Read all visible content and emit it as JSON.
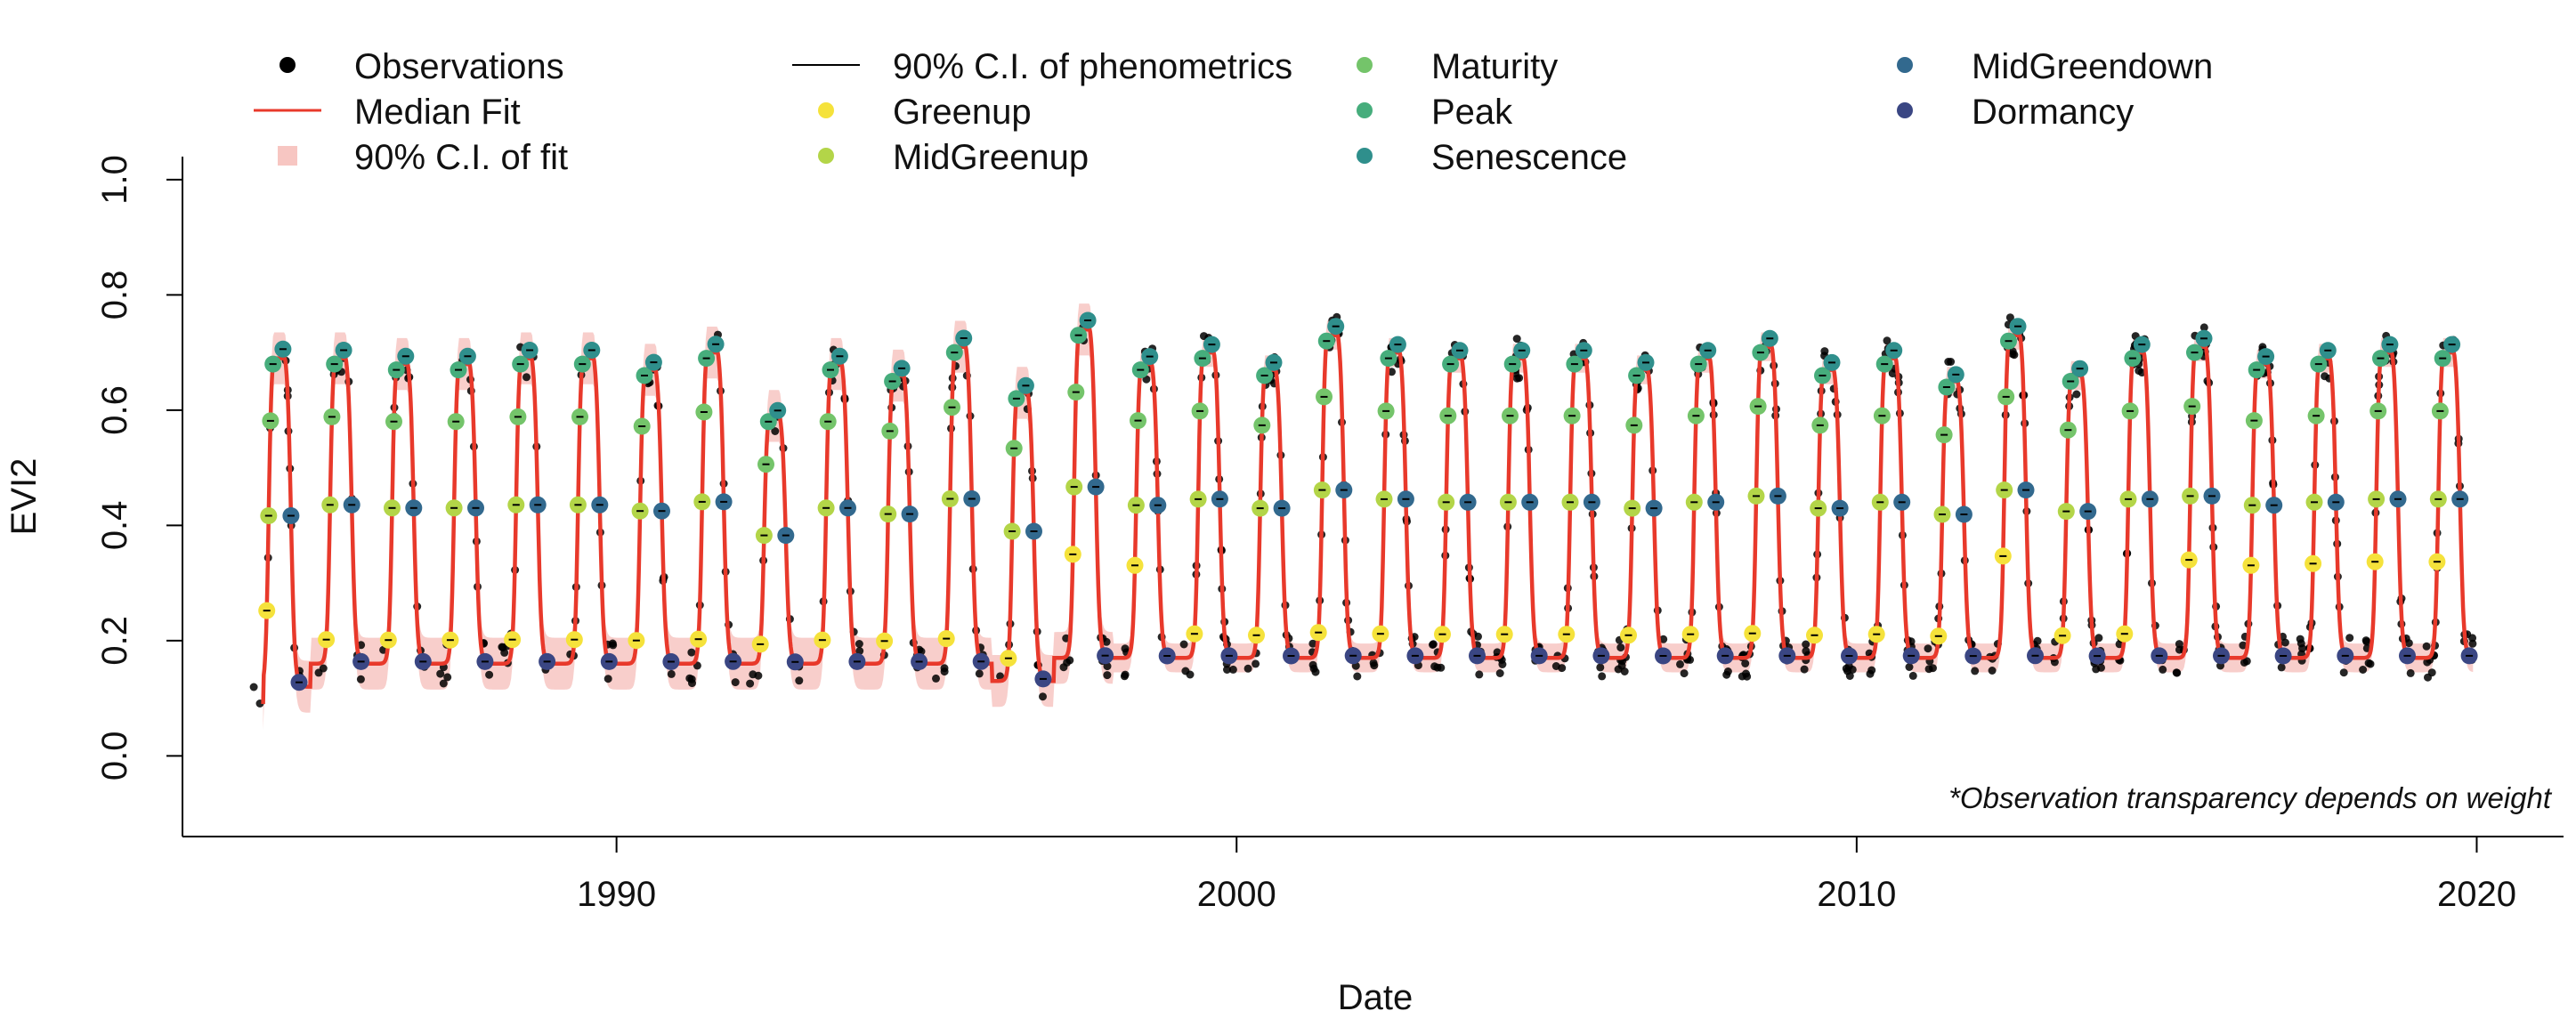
{
  "chart_data": {
    "type": "line",
    "xlabel": "Date",
    "ylabel": "EVI2",
    "xlim": [
      1983.0,
      2021.4
    ],
    "ylim": [
      -0.14,
      1.04
    ],
    "x_ticks": [
      1990,
      2000,
      2010,
      2020
    ],
    "y_ticks": [
      0.0,
      0.2,
      0.4,
      0.6,
      0.8,
      1.0
    ],
    "y_tick_labels": [
      "0.0",
      "0.2",
      "0.4",
      "0.6",
      "0.8",
      "1.0"
    ],
    "note": "*Observation transparency depends on weight",
    "legend": {
      "placement": "top",
      "entries": [
        {
          "label": "Observations",
          "kind": "point",
          "color": "#000000"
        },
        {
          "label": "Median Fit",
          "kind": "line",
          "color": "#e8392b"
        },
        {
          "label": "90% C.I. of fit",
          "kind": "band",
          "color": "#f7c6c2"
        },
        {
          "label": "90% C.I. of phenometrics",
          "kind": "line",
          "color": "#000000"
        },
        {
          "label": "Greenup",
          "kind": "point",
          "color": "#f5e23b"
        },
        {
          "label": "MidGreenup",
          "kind": "point",
          "color": "#b3d548"
        },
        {
          "label": "Maturity",
          "kind": "point",
          "color": "#74c46a"
        },
        {
          "label": "Peak",
          "kind": "point",
          "color": "#46ad7c"
        },
        {
          "label": "Senescence",
          "kind": "point",
          "color": "#2f8f8c"
        },
        {
          "label": "MidGreendown",
          "kind": "point",
          "color": "#32698e"
        },
        {
          "label": "Dormancy",
          "kind": "point",
          "color": "#3a4683"
        }
      ]
    },
    "seasons": {
      "years": [
        1984,
        1985,
        1986,
        1987,
        1988,
        1989,
        1990,
        1991,
        1992,
        1993,
        1994,
        1995,
        1996,
        1997,
        1998,
        1999,
        2000,
        2001,
        2002,
        2003,
        2004,
        2005,
        2006,
        2007,
        2008,
        2009,
        2010,
        2011,
        2012,
        2013,
        2014,
        2015,
        2016,
        2017,
        2018,
        2019
      ],
      "greenup": [
        1984.36,
        1985.32,
        1986.32,
        1987.32,
        1988.32,
        1989.32,
        1990.32,
        1991.32,
        1992.32,
        1993.32,
        1994.32,
        1995.32,
        1996.32,
        1997.36,
        1998.36,
        1999.32,
        2000.32,
        2001.32,
        2002.32,
        2003.32,
        2004.32,
        2005.32,
        2006.32,
        2007.32,
        2008.32,
        2009.32,
        2010.32,
        2011.32,
        2012.36,
        2013.32,
        2014.32,
        2015.36,
        2016.36,
        2017.36,
        2018.36,
        2019.36
      ],
      "midgreenup": [
        1984.39,
        1985.38,
        1986.38,
        1987.38,
        1988.38,
        1989.38,
        1990.38,
        1991.38,
        1992.38,
        1993.38,
        1994.38,
        1995.38,
        1996.38,
        1997.38,
        1998.38,
        1999.38,
        2000.38,
        2001.38,
        2002.38,
        2003.38,
        2004.38,
        2005.38,
        2006.38,
        2007.38,
        2008.38,
        2009.38,
        2010.38,
        2011.38,
        2012.38,
        2013.38,
        2014.38,
        2015.38,
        2016.38,
        2017.38,
        2018.38,
        2019.38
      ],
      "maturity": [
        1984.42,
        1985.41,
        1986.41,
        1987.41,
        1988.41,
        1989.41,
        1990.41,
        1991.41,
        1992.41,
        1993.41,
        1994.41,
        1995.41,
        1996.41,
        1997.41,
        1998.41,
        1999.41,
        2000.41,
        2001.41,
        2002.41,
        2003.41,
        2004.41,
        2005.41,
        2006.41,
        2007.41,
        2008.41,
        2009.41,
        2010.41,
        2011.41,
        2012.41,
        2013.41,
        2014.41,
        2015.41,
        2016.41,
        2017.41,
        2018.41,
        2019.41
      ],
      "peak": [
        1984.46,
        1985.45,
        1986.45,
        1987.45,
        1988.45,
        1989.45,
        1990.45,
        1991.45,
        1992.45,
        1993.45,
        1994.45,
        1995.45,
        1996.45,
        1997.45,
        1998.45,
        1999.45,
        2000.45,
        2001.45,
        2002.45,
        2003.45,
        2004.45,
        2005.45,
        2006.45,
        2007.45,
        2008.45,
        2009.45,
        2010.45,
        2011.45,
        2012.45,
        2013.45,
        2014.45,
        2015.45,
        2016.45,
        2017.45,
        2018.45,
        2019.45
      ],
      "senescence": [
        1984.62,
        1985.6,
        1986.6,
        1987.6,
        1988.6,
        1989.6,
        1990.6,
        1991.6,
        1992.6,
        1993.6,
        1994.6,
        1995.6,
        1996.6,
        1997.6,
        1998.6,
        1999.6,
        2000.6,
        2001.6,
        2002.6,
        2003.6,
        2004.6,
        2005.6,
        2006.6,
        2007.6,
        2008.6,
        2009.6,
        2010.6,
        2011.6,
        2012.6,
        2013.6,
        2014.6,
        2015.6,
        2016.6,
        2017.6,
        2018.6,
        2019.6
      ],
      "midgreendown": [
        1984.75,
        1985.73,
        1986.73,
        1987.73,
        1988.73,
        1989.73,
        1990.73,
        1991.73,
        1992.73,
        1993.73,
        1994.73,
        1995.73,
        1996.73,
        1997.73,
        1998.73,
        1999.73,
        2000.73,
        2001.73,
        2002.73,
        2003.73,
        2004.73,
        2005.73,
        2006.73,
        2007.73,
        2008.73,
        2009.73,
        2010.73,
        2011.73,
        2012.73,
        2013.73,
        2014.73,
        2015.73,
        2016.73,
        2017.73,
        2018.73,
        2019.73
      ],
      "dormancy": [
        1984.88,
        1985.88,
        1986.88,
        1987.88,
        1988.88,
        1989.88,
        1990.88,
        1991.88,
        1992.88,
        1993.88,
        1994.88,
        1995.88,
        1996.88,
        1997.88,
        1998.88,
        1999.88,
        2000.88,
        2001.88,
        2002.88,
        2003.88,
        2004.88,
        2005.88,
        2006.88,
        2007.88,
        2008.88,
        2009.88,
        2010.88,
        2011.88,
        2012.88,
        2013.88,
        2014.88,
        2015.88,
        2016.88,
        2017.88,
        2018.88,
        2019.88
      ],
      "base_evi2": [
        0.12,
        0.16,
        0.16,
        0.16,
        0.16,
        0.16,
        0.16,
        0.16,
        0.16,
        0.16,
        0.16,
        0.16,
        0.13,
        0.17,
        0.17,
        0.17,
        0.17,
        0.17,
        0.17,
        0.17,
        0.17,
        0.17,
        0.17,
        0.17,
        0.17,
        0.17,
        0.17,
        0.17,
        0.17,
        0.17,
        0.17,
        0.17,
        0.17,
        0.17,
        0.17,
        0.17
      ],
      "peak_evi2": [
        0.68,
        0.68,
        0.67,
        0.67,
        0.68,
        0.68,
        0.66,
        0.69,
        0.58,
        0.67,
        0.65,
        0.7,
        0.62,
        0.73,
        0.67,
        0.69,
        0.66,
        0.72,
        0.69,
        0.68,
        0.68,
        0.68,
        0.66,
        0.68,
        0.7,
        0.66,
        0.68,
        0.64,
        0.72,
        0.65,
        0.69,
        0.7,
        0.67,
        0.68,
        0.69,
        0.69
      ]
    }
  }
}
